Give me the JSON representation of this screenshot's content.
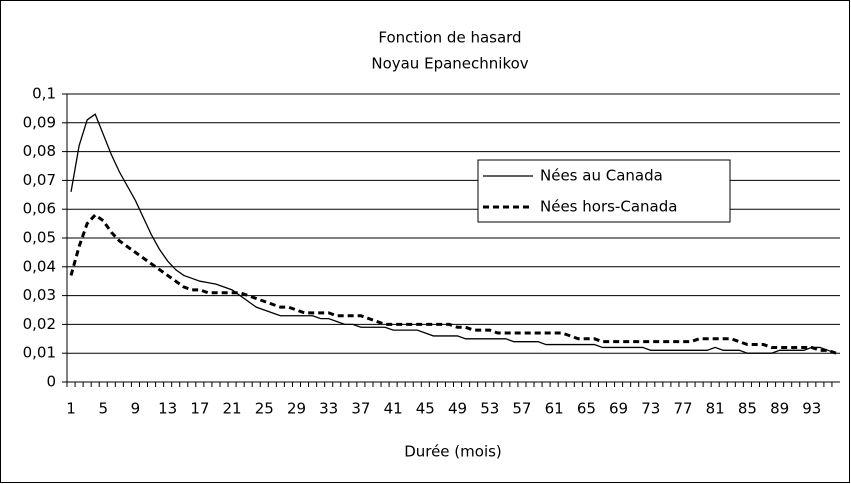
{
  "chart_data": {
    "type": "line",
    "title": "Fonction de hasard",
    "subtitle": "Noyau Epanechnikov",
    "x_label": "Durée (mois)",
    "categories": [
      1,
      null,
      null,
      null,
      5,
      null,
      null,
      null,
      9,
      null,
      null,
      null,
      13,
      null,
      null,
      null,
      17,
      null,
      null,
      null,
      21,
      null,
      null,
      null,
      25,
      null,
      null,
      null,
      29,
      null,
      null,
      null,
      33,
      null,
      null,
      null,
      37,
      null,
      null,
      null,
      41,
      null,
      null,
      null,
      45,
      null,
      null,
      null,
      49,
      null,
      null,
      null,
      53,
      null,
      null,
      null,
      57,
      null,
      null,
      null,
      61,
      null,
      null,
      null,
      65,
      null,
      null,
      null,
      69,
      null,
      null,
      null,
      73,
      null,
      null,
      null,
      77,
      null,
      null,
      null,
      81,
      null,
      null,
      null,
      85,
      null,
      null,
      null,
      89,
      null,
      null,
      null,
      93,
      null,
      null,
      null
    ],
    "series": [
      {
        "name": "Nées au Canada",
        "color": "#000000",
        "dashed": false,
        "values": [
          0.066,
          0.082,
          0.091,
          0.093,
          0.086,
          0.079,
          0.073,
          0.068,
          0.063,
          0.057,
          0.051,
          0.046,
          0.042,
          0.039,
          0.037,
          0.036,
          0.035,
          0.0345,
          0.034,
          0.033,
          0.032,
          0.03,
          0.028,
          0.026,
          0.025,
          0.024,
          0.023,
          0.023,
          0.023,
          0.023,
          0.023,
          0.022,
          0.022,
          0.021,
          0.02,
          0.02,
          0.019,
          0.019,
          0.019,
          0.019,
          0.018,
          0.018,
          0.018,
          0.018,
          0.017,
          0.016,
          0.016,
          0.016,
          0.016,
          0.015,
          0.015,
          0.015,
          0.015,
          0.015,
          0.015,
          0.014,
          0.014,
          0.014,
          0.014,
          0.013,
          0.013,
          0.013,
          0.013,
          0.013,
          0.013,
          0.013,
          0.012,
          0.012,
          0.012,
          0.012,
          0.012,
          0.012,
          0.011,
          0.011,
          0.011,
          0.011,
          0.011,
          0.011,
          0.011,
          0.011,
          0.012,
          0.011,
          0.011,
          0.011,
          0.01,
          0.01,
          0.01,
          0.01,
          0.011,
          0.011,
          0.011,
          0.011,
          0.012,
          0.012,
          0.011,
          0.01
        ]
      },
      {
        "name": "Nées hors-Canada",
        "color": "#000000",
        "dashed": true,
        "values": [
          0.037,
          0.047,
          0.055,
          0.058,
          0.056,
          0.052,
          0.049,
          0.047,
          0.045,
          0.043,
          0.041,
          0.039,
          0.037,
          0.035,
          0.033,
          0.032,
          0.032,
          0.031,
          0.031,
          0.031,
          0.031,
          0.031,
          0.03,
          0.029,
          0.028,
          0.027,
          0.026,
          0.026,
          0.025,
          0.024,
          0.024,
          0.024,
          0.024,
          0.023,
          0.023,
          0.023,
          0.023,
          0.022,
          0.021,
          0.02,
          0.02,
          0.02,
          0.02,
          0.02,
          0.02,
          0.02,
          0.02,
          0.02,
          0.019,
          0.019,
          0.018,
          0.018,
          0.018,
          0.017,
          0.017,
          0.017,
          0.017,
          0.017,
          0.017,
          0.017,
          0.017,
          0.017,
          0.016,
          0.015,
          0.015,
          0.015,
          0.014,
          0.014,
          0.014,
          0.014,
          0.014,
          0.014,
          0.014,
          0.014,
          0.014,
          0.014,
          0.014,
          0.014,
          0.015,
          0.015,
          0.015,
          0.015,
          0.015,
          0.014,
          0.013,
          0.013,
          0.013,
          0.012,
          0.012,
          0.012,
          0.012,
          0.012,
          0.012,
          0.011,
          0.011,
          0.01
        ]
      }
    ],
    "ylim": [
      0,
      0.1
    ],
    "yticks": [
      0,
      {
        "value": 0.01,
        "label": "0,01"
      },
      {
        "value": 0.02,
        "label": "0,02"
      },
      {
        "value": 0.03,
        "label": "0,03"
      },
      {
        "value": 0.04,
        "label": "0,04"
      },
      {
        "value": 0.05,
        "label": "0,05"
      },
      {
        "value": 0.06,
        "label": "0,06"
      },
      {
        "value": 0.07,
        "label": "0,07"
      },
      {
        "value": 0.08,
        "label": "0,08"
      },
      {
        "value": 0.09,
        "label": "0,09"
      },
      {
        "value": 0.1,
        "label": "0,1"
      }
    ],
    "grid": true,
    "legend": "right"
  }
}
